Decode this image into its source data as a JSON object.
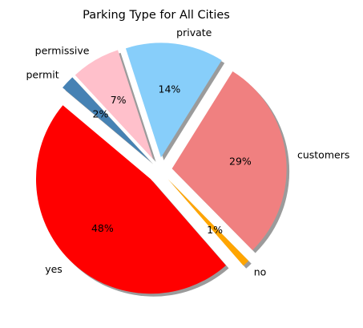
{
  "chart_data": {
    "type": "pie",
    "title": "Parking Type for All Cities",
    "slices": [
      {
        "label": "yes",
        "value": 48,
        "pct_label": "48%",
        "color": "#ff0000"
      },
      {
        "label": "no",
        "value": 1,
        "pct_label": "1%",
        "color": "#ffa500"
      },
      {
        "label": "customers",
        "value": 29,
        "pct_label": "29%",
        "color": "#f08080"
      },
      {
        "label": "private",
        "value": 14,
        "pct_label": "14%",
        "color": "#87cefa"
      },
      {
        "label": "permissive",
        "value": 7,
        "pct_label": "7%",
        "color": "#ffc0cb"
      },
      {
        "label": "permit",
        "value": 2,
        "pct_label": "2%",
        "color": "#4682b4"
      }
    ],
    "exploded": true,
    "shadow": true
  }
}
